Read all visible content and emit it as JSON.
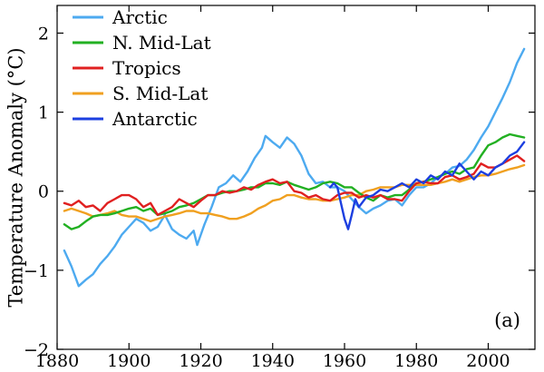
{
  "chart_data": {
    "type": "line",
    "ylabel": "Temperature Anomaly (°C)",
    "xlabel": "",
    "panel_label": "(a)",
    "xlim": [
      1880,
      2013
    ],
    "ylim": [
      -2,
      2.35
    ],
    "x_ticks": [
      1880,
      1900,
      1920,
      1940,
      1960,
      1980,
      2000
    ],
    "x_tick_labels": [
      "1880",
      "1900",
      "1920",
      "1940",
      "1960",
      "1980",
      "2000"
    ],
    "y_ticks": [
      -2,
      -1,
      0,
      1,
      2
    ],
    "y_tick_labels": [
      "−2",
      "−1",
      "0",
      "1",
      "2"
    ],
    "grid": false,
    "legend_position": "top-left",
    "series": [
      {
        "name": "Arctic",
        "color": "#4daaf0",
        "points": [
          [
            1882,
            -0.75
          ],
          [
            1884,
            -0.95
          ],
          [
            1886,
            -1.2
          ],
          [
            1888,
            -1.12
          ],
          [
            1890,
            -1.05
          ],
          [
            1892,
            -0.92
          ],
          [
            1894,
            -0.82
          ],
          [
            1896,
            -0.7
          ],
          [
            1898,
            -0.55
          ],
          [
            1900,
            -0.45
          ],
          [
            1902,
            -0.35
          ],
          [
            1904,
            -0.4
          ],
          [
            1906,
            -0.5
          ],
          [
            1908,
            -0.45
          ],
          [
            1910,
            -0.3
          ],
          [
            1912,
            -0.48
          ],
          [
            1914,
            -0.55
          ],
          [
            1916,
            -0.6
          ],
          [
            1918,
            -0.5
          ],
          [
            1919,
            -0.68
          ],
          [
            1921,
            -0.42
          ],
          [
            1923,
            -0.2
          ],
          [
            1925,
            0.05
          ],
          [
            1927,
            0.1
          ],
          [
            1929,
            0.2
          ],
          [
            1931,
            0.12
          ],
          [
            1933,
            0.25
          ],
          [
            1935,
            0.42
          ],
          [
            1937,
            0.55
          ],
          [
            1938,
            0.7
          ],
          [
            1940,
            0.62
          ],
          [
            1942,
            0.55
          ],
          [
            1944,
            0.68
          ],
          [
            1946,
            0.6
          ],
          [
            1948,
            0.45
          ],
          [
            1950,
            0.22
          ],
          [
            1952,
            0.1
          ],
          [
            1954,
            0.12
          ],
          [
            1956,
            0.05
          ],
          [
            1958,
            0.05
          ],
          [
            1960,
            0.0
          ],
          [
            1962,
            -0.1
          ],
          [
            1964,
            -0.2
          ],
          [
            1966,
            -0.28
          ],
          [
            1968,
            -0.22
          ],
          [
            1970,
            -0.18
          ],
          [
            1972,
            -0.12
          ],
          [
            1974,
            -0.1
          ],
          [
            1976,
            -0.18
          ],
          [
            1978,
            -0.05
          ],
          [
            1980,
            0.05
          ],
          [
            1982,
            0.05
          ],
          [
            1984,
            0.1
          ],
          [
            1986,
            0.18
          ],
          [
            1988,
            0.22
          ],
          [
            1990,
            0.3
          ],
          [
            1992,
            0.32
          ],
          [
            1994,
            0.4
          ],
          [
            1996,
            0.52
          ],
          [
            1998,
            0.68
          ],
          [
            2000,
            0.82
          ],
          [
            2002,
            1.0
          ],
          [
            2004,
            1.18
          ],
          [
            2006,
            1.38
          ],
          [
            2008,
            1.62
          ],
          [
            2010,
            1.8
          ]
        ]
      },
      {
        "name": "N. Mid-Lat",
        "color": "#22b022",
        "points": [
          [
            1882,
            -0.42
          ],
          [
            1884,
            -0.48
          ],
          [
            1886,
            -0.45
          ],
          [
            1888,
            -0.38
          ],
          [
            1890,
            -0.32
          ],
          [
            1892,
            -0.3
          ],
          [
            1894,
            -0.3
          ],
          [
            1896,
            -0.28
          ],
          [
            1898,
            -0.25
          ],
          [
            1900,
            -0.22
          ],
          [
            1902,
            -0.2
          ],
          [
            1904,
            -0.25
          ],
          [
            1906,
            -0.22
          ],
          [
            1908,
            -0.3
          ],
          [
            1910,
            -0.28
          ],
          [
            1912,
            -0.25
          ],
          [
            1914,
            -0.2
          ],
          [
            1916,
            -0.18
          ],
          [
            1918,
            -0.15
          ],
          [
            1920,
            -0.1
          ],
          [
            1922,
            -0.05
          ],
          [
            1924,
            -0.05
          ],
          [
            1926,
            -0.02
          ],
          [
            1928,
            0.0
          ],
          [
            1930,
            0.0
          ],
          [
            1932,
            0.02
          ],
          [
            1934,
            0.05
          ],
          [
            1936,
            0.05
          ],
          [
            1938,
            0.1
          ],
          [
            1940,
            0.1
          ],
          [
            1942,
            0.08
          ],
          [
            1944,
            0.12
          ],
          [
            1946,
            0.08
          ],
          [
            1948,
            0.05
          ],
          [
            1950,
            0.02
          ],
          [
            1952,
            0.05
          ],
          [
            1954,
            0.1
          ],
          [
            1956,
            0.12
          ],
          [
            1958,
            0.1
          ],
          [
            1960,
            0.05
          ],
          [
            1962,
            0.05
          ],
          [
            1964,
            -0.02
          ],
          [
            1966,
            -0.08
          ],
          [
            1968,
            -0.12
          ],
          [
            1970,
            -0.05
          ],
          [
            1972,
            -0.08
          ],
          [
            1974,
            -0.05
          ],
          [
            1976,
            -0.05
          ],
          [
            1978,
            0.02
          ],
          [
            1980,
            0.1
          ],
          [
            1982,
            0.12
          ],
          [
            1984,
            0.15
          ],
          [
            1986,
            0.18
          ],
          [
            1988,
            0.22
          ],
          [
            1990,
            0.25
          ],
          [
            1992,
            0.22
          ],
          [
            1994,
            0.28
          ],
          [
            1996,
            0.3
          ],
          [
            1998,
            0.45
          ],
          [
            2000,
            0.58
          ],
          [
            2002,
            0.62
          ],
          [
            2004,
            0.68
          ],
          [
            2006,
            0.72
          ],
          [
            2008,
            0.7
          ],
          [
            2010,
            0.68
          ]
        ]
      },
      {
        "name": "Tropics",
        "color": "#e02020",
        "points": [
          [
            1882,
            -0.15
          ],
          [
            1884,
            -0.18
          ],
          [
            1886,
            -0.12
          ],
          [
            1888,
            -0.2
          ],
          [
            1890,
            -0.18
          ],
          [
            1892,
            -0.25
          ],
          [
            1894,
            -0.15
          ],
          [
            1896,
            -0.1
          ],
          [
            1898,
            -0.05
          ],
          [
            1900,
            -0.05
          ],
          [
            1902,
            -0.1
          ],
          [
            1904,
            -0.2
          ],
          [
            1906,
            -0.15
          ],
          [
            1908,
            -0.3
          ],
          [
            1910,
            -0.25
          ],
          [
            1912,
            -0.2
          ],
          [
            1914,
            -0.1
          ],
          [
            1916,
            -0.15
          ],
          [
            1918,
            -0.2
          ],
          [
            1920,
            -0.12
          ],
          [
            1922,
            -0.05
          ],
          [
            1924,
            -0.05
          ],
          [
            1926,
            0.0
          ],
          [
            1928,
            -0.02
          ],
          [
            1930,
            0.0
          ],
          [
            1932,
            0.05
          ],
          [
            1934,
            0.02
          ],
          [
            1936,
            0.08
          ],
          [
            1938,
            0.12
          ],
          [
            1940,
            0.15
          ],
          [
            1942,
            0.1
          ],
          [
            1944,
            0.12
          ],
          [
            1946,
            0.0
          ],
          [
            1948,
            -0.02
          ],
          [
            1950,
            -0.08
          ],
          [
            1952,
            -0.05
          ],
          [
            1954,
            -0.1
          ],
          [
            1956,
            -0.12
          ],
          [
            1958,
            -0.05
          ],
          [
            1960,
            -0.02
          ],
          [
            1962,
            -0.02
          ],
          [
            1964,
            -0.08
          ],
          [
            1966,
            -0.05
          ],
          [
            1968,
            -0.08
          ],
          [
            1970,
            -0.05
          ],
          [
            1972,
            -0.1
          ],
          [
            1974,
            -0.1
          ],
          [
            1976,
            -0.12
          ],
          [
            1978,
            0.0
          ],
          [
            1980,
            0.1
          ],
          [
            1982,
            0.12
          ],
          [
            1984,
            0.1
          ],
          [
            1986,
            0.1
          ],
          [
            1988,
            0.18
          ],
          [
            1990,
            0.2
          ],
          [
            1992,
            0.15
          ],
          [
            1994,
            0.18
          ],
          [
            1996,
            0.22
          ],
          [
            1998,
            0.35
          ],
          [
            2000,
            0.3
          ],
          [
            2002,
            0.3
          ],
          [
            2004,
            0.35
          ],
          [
            2006,
            0.4
          ],
          [
            2008,
            0.45
          ],
          [
            2010,
            0.38
          ]
        ]
      },
      {
        "name": "S. Mid-Lat",
        "color": "#f0a020",
        "points": [
          [
            1882,
            -0.25
          ],
          [
            1884,
            -0.22
          ],
          [
            1886,
            -0.25
          ],
          [
            1888,
            -0.28
          ],
          [
            1890,
            -0.32
          ],
          [
            1892,
            -0.3
          ],
          [
            1894,
            -0.28
          ],
          [
            1896,
            -0.25
          ],
          [
            1898,
            -0.3
          ],
          [
            1900,
            -0.32
          ],
          [
            1902,
            -0.32
          ],
          [
            1904,
            -0.35
          ],
          [
            1906,
            -0.38
          ],
          [
            1908,
            -0.35
          ],
          [
            1910,
            -0.32
          ],
          [
            1912,
            -0.3
          ],
          [
            1914,
            -0.28
          ],
          [
            1916,
            -0.25
          ],
          [
            1918,
            -0.25
          ],
          [
            1920,
            -0.28
          ],
          [
            1922,
            -0.28
          ],
          [
            1924,
            -0.3
          ],
          [
            1926,
            -0.32
          ],
          [
            1928,
            -0.35
          ],
          [
            1930,
            -0.35
          ],
          [
            1932,
            -0.32
          ],
          [
            1934,
            -0.28
          ],
          [
            1936,
            -0.22
          ],
          [
            1938,
            -0.18
          ],
          [
            1940,
            -0.12
          ],
          [
            1942,
            -0.1
          ],
          [
            1944,
            -0.05
          ],
          [
            1946,
            -0.05
          ],
          [
            1948,
            -0.08
          ],
          [
            1950,
            -0.1
          ],
          [
            1952,
            -0.1
          ],
          [
            1954,
            -0.12
          ],
          [
            1956,
            -0.12
          ],
          [
            1958,
            -0.1
          ],
          [
            1960,
            -0.08
          ],
          [
            1962,
            -0.05
          ],
          [
            1964,
            -0.05
          ],
          [
            1966,
            0.0
          ],
          [
            1968,
            0.02
          ],
          [
            1970,
            0.05
          ],
          [
            1972,
            0.05
          ],
          [
            1974,
            0.05
          ],
          [
            1976,
            0.08
          ],
          [
            1978,
            0.08
          ],
          [
            1980,
            0.08
          ],
          [
            1982,
            0.08
          ],
          [
            1984,
            0.08
          ],
          [
            1986,
            0.1
          ],
          [
            1988,
            0.12
          ],
          [
            1990,
            0.15
          ],
          [
            1992,
            0.12
          ],
          [
            1994,
            0.15
          ],
          [
            1996,
            0.18
          ],
          [
            1998,
            0.2
          ],
          [
            2000,
            0.2
          ],
          [
            2002,
            0.22
          ],
          [
            2004,
            0.25
          ],
          [
            2006,
            0.28
          ],
          [
            2008,
            0.3
          ],
          [
            2010,
            0.33
          ]
        ]
      },
      {
        "name": "Antarctic",
        "color": "#1c3fe0",
        "points": [
          [
            1956,
            0.05
          ],
          [
            1957,
            0.1
          ],
          [
            1958,
            0.05
          ],
          [
            1959,
            -0.15
          ],
          [
            1960,
            -0.35
          ],
          [
            1961,
            -0.48
          ],
          [
            1962,
            -0.3
          ],
          [
            1963,
            -0.1
          ],
          [
            1964,
            -0.2
          ],
          [
            1966,
            -0.08
          ],
          [
            1968,
            -0.05
          ],
          [
            1970,
            0.02
          ],
          [
            1972,
            0.0
          ],
          [
            1974,
            0.05
          ],
          [
            1976,
            0.1
          ],
          [
            1978,
            0.05
          ],
          [
            1980,
            0.15
          ],
          [
            1982,
            0.1
          ],
          [
            1984,
            0.2
          ],
          [
            1986,
            0.15
          ],
          [
            1988,
            0.25
          ],
          [
            1990,
            0.2
          ],
          [
            1992,
            0.35
          ],
          [
            1994,
            0.25
          ],
          [
            1996,
            0.15
          ],
          [
            1998,
            0.25
          ],
          [
            2000,
            0.2
          ],
          [
            2002,
            0.3
          ],
          [
            2004,
            0.35
          ],
          [
            2006,
            0.45
          ],
          [
            2008,
            0.5
          ],
          [
            2010,
            0.62
          ]
        ]
      }
    ]
  }
}
